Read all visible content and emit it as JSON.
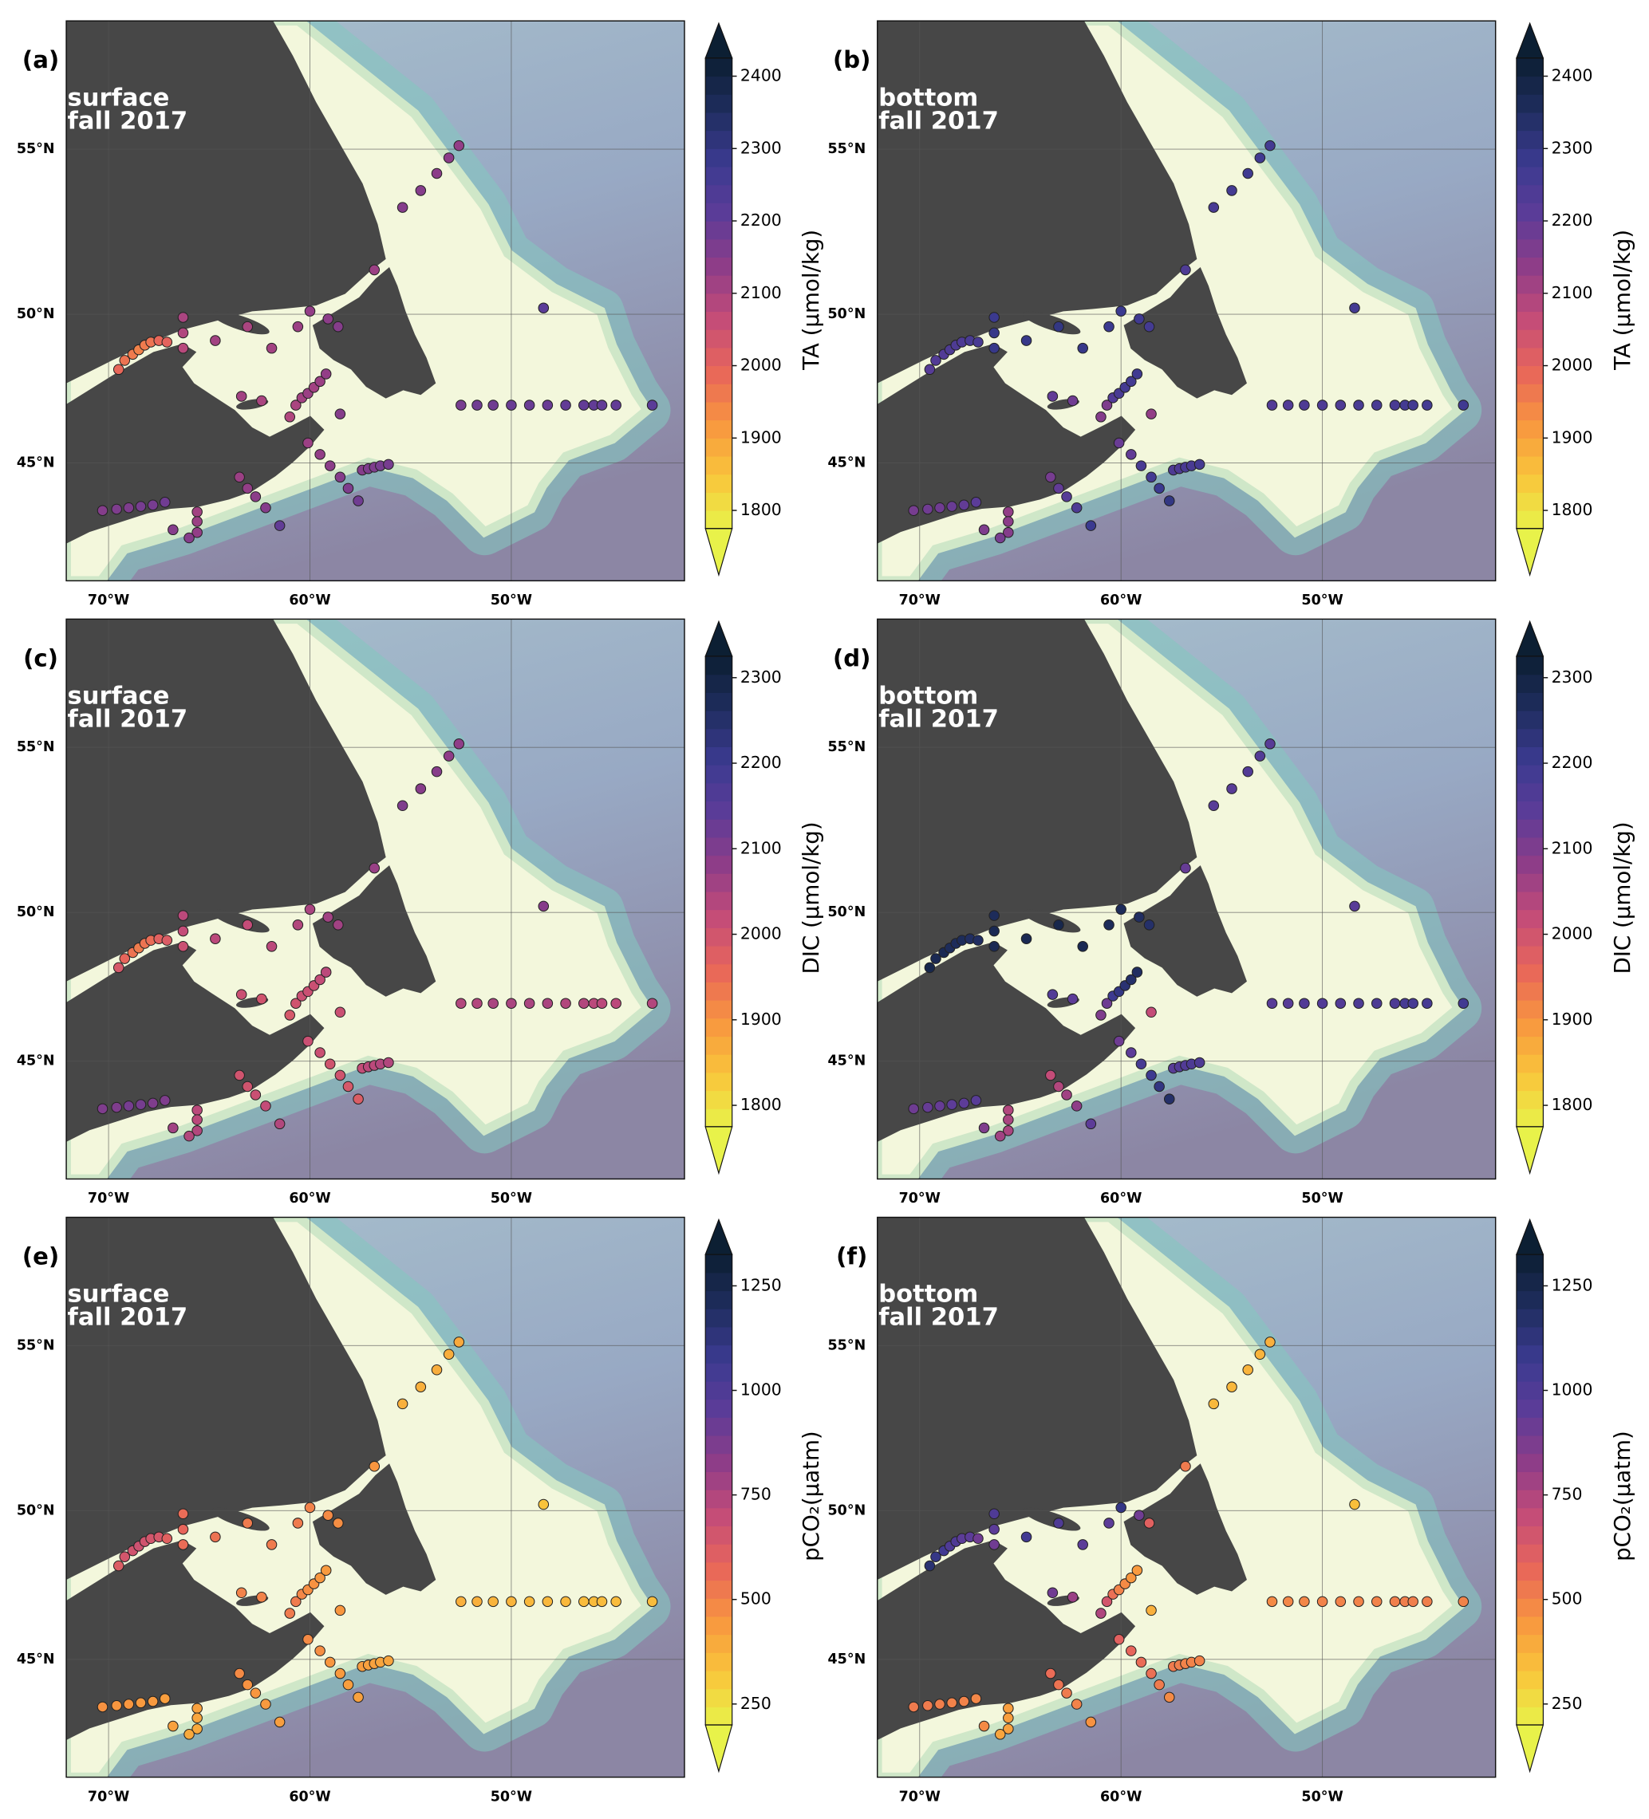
{
  "chart_data": {
    "type": "scatter_map",
    "projection": "mercator",
    "grid": true,
    "xlim": [
      -72.1,
      -41.4
    ],
    "ylim": [
      40.7,
      58.5
    ],
    "xticks": [
      {
        "value": -70,
        "label": "70°W"
      },
      {
        "value": -60,
        "label": "60°W"
      },
      {
        "value": -50,
        "label": "50°W"
      }
    ],
    "yticks": [
      {
        "value": 45,
        "label": "45°N"
      },
      {
        "value": 50,
        "label": "50°N"
      },
      {
        "value": 55,
        "label": "55°N"
      }
    ],
    "colormap": [
      "#e8f24a",
      "#f9c53b",
      "#f8963f",
      "#e8665a",
      "#c44c78",
      "#8f3d88",
      "#5c3c98",
      "#3b3a90",
      "#1f2d5e",
      "#0c1f33"
    ],
    "x": [
      -52.6,
      -53.1,
      -53.7,
      -54.5,
      -55.4,
      -56.8,
      -48.4,
      -52.5,
      -51.7,
      -50.9,
      -50.0,
      -49.1,
      -48.2,
      -47.3,
      -46.4,
      -45.9,
      -45.5,
      -44.8,
      -43.0,
      -69.5,
      -69.2,
      -68.8,
      -68.5,
      -68.2,
      -67.9,
      -67.5,
      -67.1,
      -66.3,
      -66.3,
      -66.3,
      -64.7,
      -63.1,
      -61.9,
      -60.0,
      -59.1,
      -58.6,
      -60.6,
      -63.4,
      -62.4,
      -61.0,
      -60.7,
      -60.4,
      -60.1,
      -59.8,
      -59.5,
      -59.2,
      -58.5,
      -60.1,
      -59.5,
      -59.0,
      -58.5,
      -58.1,
      -57.6,
      -57.4,
      -57.1,
      -56.8,
      -56.5,
      -56.1,
      -63.5,
      -63.1,
      -62.7,
      -62.2,
      -61.5,
      -65.6,
      -65.6,
      -65.6,
      -66.0,
      -70.3,
      -69.6,
      -69.0,
      -68.4,
      -67.8,
      -67.2,
      -66.8
    ],
    "y": [
      55.1,
      54.75,
      54.3,
      53.8,
      53.3,
      51.4,
      50.2,
      47.0,
      47.0,
      47.0,
      47.0,
      47.0,
      47.0,
      47.0,
      47.0,
      47.0,
      47.0,
      47.0,
      47.0,
      48.2,
      48.5,
      48.7,
      48.85,
      49.0,
      49.1,
      49.15,
      49.1,
      49.9,
      49.4,
      48.9,
      49.15,
      49.6,
      48.9,
      50.1,
      49.85,
      49.6,
      49.6,
      47.3,
      47.15,
      46.6,
      47.0,
      47.25,
      47.4,
      47.6,
      47.8,
      48.05,
      46.7,
      45.7,
      45.3,
      44.9,
      44.5,
      44.1,
      43.65,
      44.75,
      44.8,
      44.85,
      44.9,
      44.95,
      44.5,
      44.1,
      43.8,
      43.4,
      42.75,
      43.25,
      42.9,
      42.5,
      42.3,
      43.3,
      43.35,
      43.4,
      43.45,
      43.5,
      43.6,
      42.6
    ],
    "panels": [
      {
        "label": "(a)",
        "depth": "surface",
        "season": "fall 2017",
        "colorbar_label": "TA (µmol/kg)",
        "clim": [
          1775,
          2425
        ],
        "cticks": [
          1800,
          1900,
          2000,
          2100,
          2200,
          2300,
          2400
        ],
        "values": [
          2130,
          2140,
          2140,
          2150,
          2150,
          2120,
          2210,
          2170,
          2180,
          2180,
          2190,
          2190,
          2190,
          2200,
          2200,
          2200,
          2200,
          2200,
          2210,
          1990,
          1970,
          1960,
          1950,
          1960,
          1970,
          1990,
          2000,
          2100,
          2090,
          2080,
          2110,
          2100,
          2110,
          2130,
          2140,
          2150,
          2120,
          2110,
          2100,
          2090,
          2100,
          2110,
          2120,
          2110,
          2120,
          2130,
          2150,
          2120,
          2130,
          2140,
          2150,
          2160,
          2180,
          2150,
          2160,
          2160,
          2170,
          2170,
          2120,
          2130,
          2140,
          2150,
          2200,
          2110,
          2120,
          2130,
          2150,
          2150,
          2160,
          2160,
          2170,
          2170,
          2180,
          2150
        ]
      },
      {
        "label": "(b)",
        "depth": "bottom",
        "season": "fall 2017",
        "colorbar_label": "TA (µmol/kg)",
        "clim": [
          1775,
          2425
        ],
        "cticks": [
          1800,
          1900,
          2000,
          2100,
          2200,
          2300,
          2400
        ],
        "values": [
          2260,
          2270,
          2270,
          2260,
          2250,
          2240,
          2260,
          2230,
          2230,
          2240,
          2240,
          2240,
          2250,
          2250,
          2250,
          2260,
          2260,
          2260,
          2270,
          2220,
          2230,
          2230,
          2240,
          2240,
          2240,
          2250,
          2250,
          2280,
          2290,
          2290,
          2290,
          2300,
          2290,
          2280,
          2270,
          2260,
          2280,
          2200,
          2180,
          2150,
          2160,
          2230,
          2250,
          2260,
          2260,
          2270,
          2130,
          2190,
          2200,
          2250,
          2260,
          2280,
          2300,
          2240,
          2240,
          2250,
          2250,
          2260,
          2170,
          2200,
          2220,
          2240,
          2280,
          2130,
          2140,
          2150,
          2170,
          2170,
          2180,
          2180,
          2190,
          2200,
          2210,
          2160
        ]
      },
      {
        "label": "(c)",
        "depth": "surface",
        "season": "fall 2017",
        "colorbar_label": "DIC (µmol/kg)",
        "clim": [
          1775,
          2325
        ],
        "cticks": [
          1800,
          1900,
          2000,
          2100,
          2200,
          2300
        ],
        "values": [
          2080,
          2080,
          2090,
          2090,
          2100,
          2070,
          2090,
          2040,
          2040,
          2050,
          2050,
          2050,
          2050,
          2040,
          2040,
          2030,
          2030,
          2030,
          2040,
          1990,
          1960,
          1940,
          1930,
          1940,
          1950,
          1970,
          1980,
          2030,
          2020,
          2010,
          2030,
          2020,
          2030,
          2050,
          2060,
          2060,
          2040,
          2010,
          2000,
          1990,
          2000,
          2010,
          2010,
          2010,
          2020,
          2030,
          2010,
          2010,
          2010,
          2000,
          2000,
          1990,
          1980,
          2020,
          2030,
          2030,
          2040,
          2040,
          2000,
          2000,
          2010,
          2020,
          2040,
          2030,
          2030,
          2040,
          2040,
          2100,
          2100,
          2110,
          2110,
          2100,
          2100,
          2060
        ]
      },
      {
        "label": "(d)",
        "depth": "bottom",
        "season": "fall 2017",
        "colorbar_label": "DIC (µmol/kg)",
        "clim": [
          1775,
          2325
        ],
        "cticks": [
          1800,
          1900,
          2000,
          2100,
          2200,
          2300
        ],
        "values": [
          2150,
          2160,
          2160,
          2150,
          2150,
          2130,
          2150,
          2150,
          2150,
          2160,
          2160,
          2160,
          2170,
          2170,
          2170,
          2180,
          2180,
          2180,
          2190,
          2290,
          2280,
          2280,
          2270,
          2270,
          2270,
          2260,
          2260,
          2270,
          2280,
          2280,
          2280,
          2290,
          2280,
          2270,
          2260,
          2250,
          2270,
          2160,
          2140,
          2100,
          2120,
          2200,
          2220,
          2240,
          2250,
          2260,
          2020,
          2120,
          2140,
          2180,
          2200,
          2220,
          2250,
          2150,
          2160,
          2160,
          2170,
          2170,
          2020,
          2040,
          2060,
          2080,
          2140,
          2040,
          2050,
          2050,
          2060,
          2120,
          2130,
          2130,
          2140,
          2140,
          2150,
          2100
        ]
      },
      {
        "label": "(e)",
        "depth": "surface",
        "season": "fall 2017",
        "colorbar_label": "pCO₂(µatm)",
        "clim": [
          200,
          1325
        ],
        "cticks": [
          250,
          500,
          750,
          1000,
          1250
        ],
        "values": [
          400,
          390,
          390,
          380,
          380,
          450,
          330,
          380,
          380,
          370,
          370,
          360,
          360,
          360,
          350,
          350,
          350,
          350,
          350,
          620,
          650,
          660,
          670,
          660,
          650,
          640,
          600,
          560,
          580,
          560,
          540,
          520,
          520,
          500,
          480,
          470,
          520,
          500,
          500,
          520,
          520,
          490,
          470,
          460,
          450,
          440,
          450,
          480,
          470,
          450,
          440,
          430,
          420,
          430,
          420,
          420,
          410,
          410,
          480,
          460,
          450,
          440,
          430,
          420,
          410,
          400,
          400,
          460,
          450,
          450,
          440,
          440,
          430,
          420
        ]
      },
      {
        "label": "(f)",
        "depth": "bottom",
        "season": "fall 2017",
        "colorbar_label": "pCO₂(µatm)",
        "clim": [
          200,
          1325
        ],
        "cticks": [
          250,
          500,
          750,
          1000,
          1250
        ],
        "values": [
          380,
          370,
          370,
          360,
          360,
          520,
          340,
          480,
          490,
          490,
          500,
          500,
          500,
          500,
          510,
          510,
          510,
          510,
          500,
          1150,
          1100,
          1050,
          1000,
          1000,
          950,
          950,
          900,
          1000,
          950,
          900,
          1050,
          1000,
          950,
          1100,
          900,
          600,
          950,
          900,
          800,
          750,
          650,
          550,
          500,
          480,
          450,
          440,
          380,
          600,
          580,
          560,
          550,
          520,
          480,
          520,
          510,
          500,
          500,
          500,
          560,
          540,
          520,
          500,
          460,
          430,
          430,
          420,
          410,
          520,
          520,
          510,
          500,
          500,
          490,
          480
        ]
      }
    ]
  }
}
